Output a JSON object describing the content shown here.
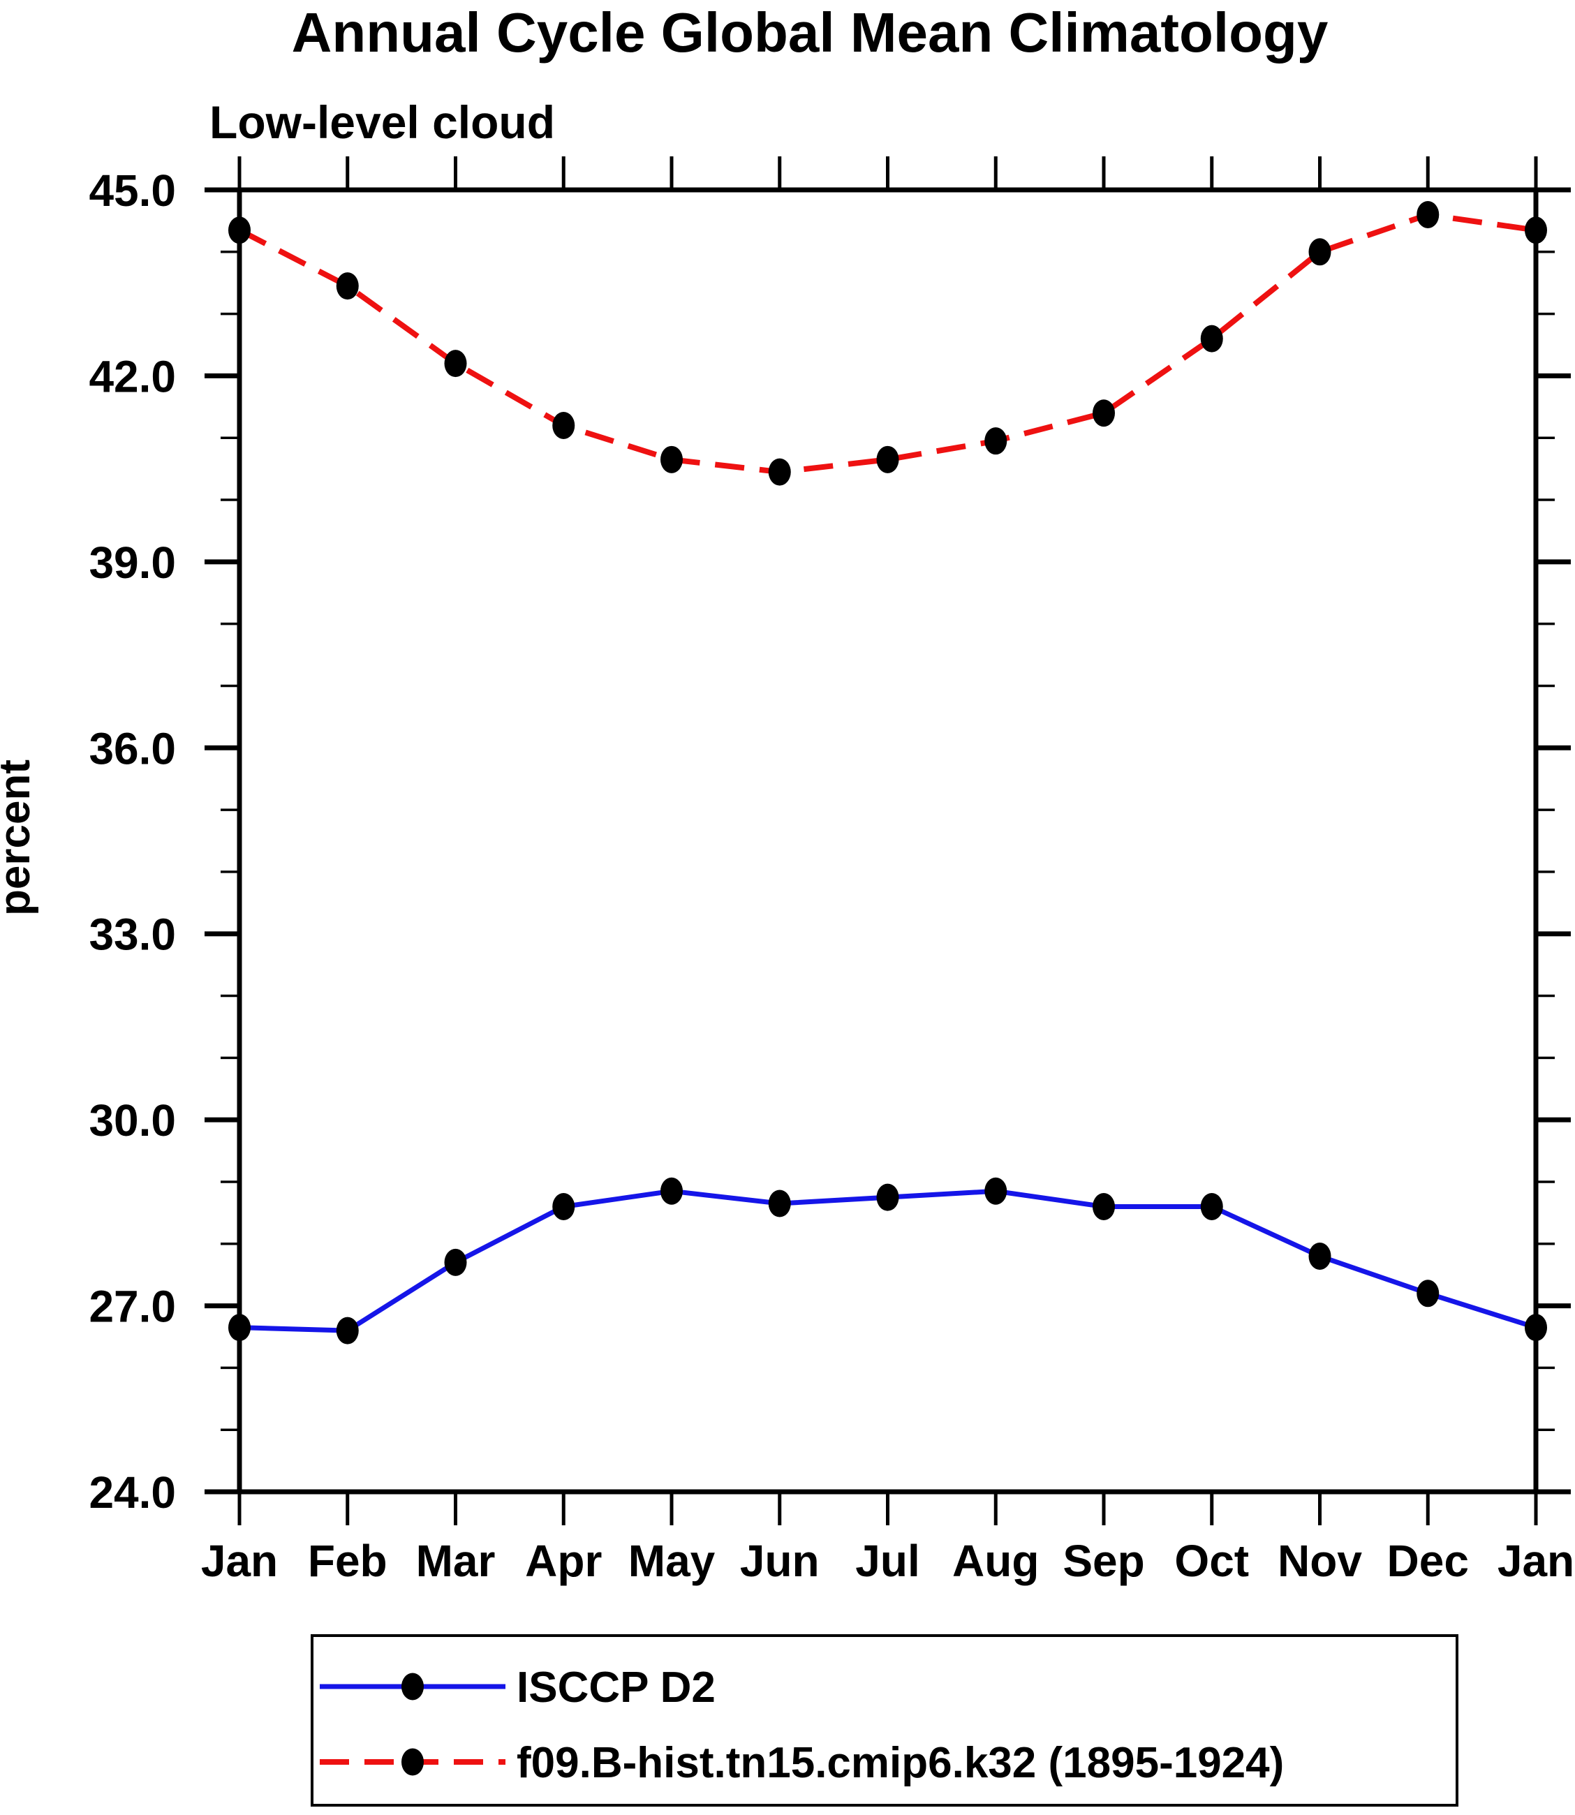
{
  "title": "Annual Cycle Global Mean Climatology",
  "subtitle": "Low-level cloud",
  "chart_data": {
    "type": "line",
    "title": "Annual Cycle Global Mean Climatology",
    "subtitle": "Low-level cloud",
    "xlabel": "",
    "ylabel": "percent",
    "categories": [
      "Jan",
      "Feb",
      "Mar",
      "Apr",
      "May",
      "Jun",
      "Jul",
      "Aug",
      "Sep",
      "Oct",
      "Nov",
      "Dec",
      "Jan"
    ],
    "ylim": [
      24.0,
      45.0
    ],
    "yticks_major": [
      24,
      27,
      30,
      33,
      36,
      39,
      42,
      45
    ],
    "ytick_labels": [
      "24.0",
      "27.0",
      "30.0",
      "33.0",
      "36.0",
      "39.0",
      "42.0",
      "45.0"
    ],
    "ytick_minor_step": 1.0,
    "grid": "off",
    "legend_position": "bottom-box",
    "marker": "black-filled-ellipse",
    "series": [
      {
        "name": "ISCCP D2",
        "color": "#1515e8",
        "line_style": "solid",
        "values": [
          26.65,
          26.6,
          27.7,
          28.6,
          28.85,
          28.65,
          28.75,
          28.85,
          28.6,
          28.6,
          27.8,
          27.2,
          26.65
        ]
      },
      {
        "name": "f09.B-hist.tn15.cmip6.k32 (1895-1924)",
        "color": "#ee1111",
        "line_style": "dashed",
        "values": [
          44.35,
          43.45,
          42.2,
          41.2,
          40.65,
          40.45,
          40.65,
          40.95,
          41.4,
          42.6,
          44.0,
          44.6,
          44.35
        ]
      }
    ]
  },
  "legend": {
    "items": [
      {
        "label": "ISCCP D2"
      },
      {
        "label": "f09.B-hist.tn15.cmip6.k32 (1895-1924)"
      }
    ]
  },
  "colors": {
    "axis": "#000000",
    "marker": "#000000",
    "series_blue": "#1515e8",
    "series_red": "#ee1111",
    "background": "#ffffff"
  }
}
